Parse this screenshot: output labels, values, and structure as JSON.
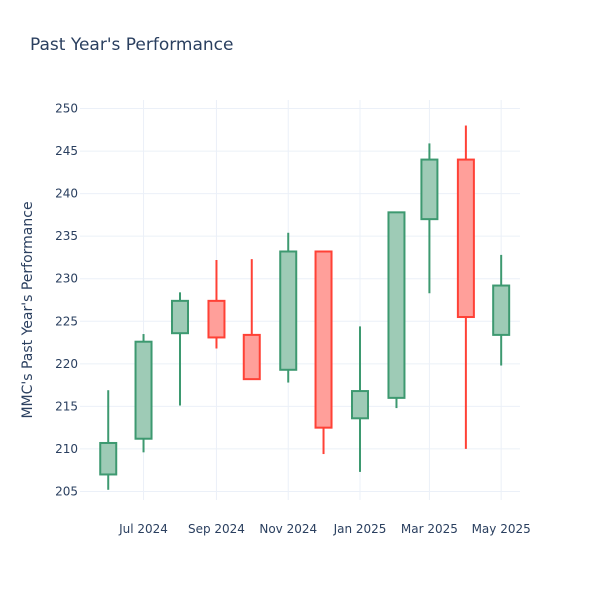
{
  "chart_data": {
    "type": "candlestick",
    "title": "Past Year's Performance",
    "xlabel": "",
    "ylabel": "MMC's Past Year's Performance",
    "ylim": [
      204,
      251
    ],
    "y_ticks": [
      205,
      210,
      215,
      220,
      225,
      230,
      235,
      240,
      245,
      250
    ],
    "x_ticks": [
      {
        "label": "Jul 2024",
        "date": "2024-07-01"
      },
      {
        "label": "Sep 2024",
        "date": "2024-09-01"
      },
      {
        "label": "Nov 2024",
        "date": "2024-11-01"
      },
      {
        "label": "Jan 2025",
        "date": "2025-01-01"
      },
      {
        "label": "Mar 2025",
        "date": "2025-03-01"
      },
      {
        "label": "May 2025",
        "date": "2025-05-01"
      }
    ],
    "x_range": [
      "2024-05-08",
      "2025-05-17"
    ],
    "increasing_color": "#3d9970",
    "increasing_fill": "#9ecbb6",
    "decreasing_color": "#ff4136",
    "decreasing_fill": "#ff9f9a",
    "grid": true,
    "series": [
      {
        "date": "2024-06-01",
        "open": 207.0,
        "high": 216.9,
        "low": 205.2,
        "close": 210.7
      },
      {
        "date": "2024-07-01",
        "open": 211.2,
        "high": 223.5,
        "low": 209.6,
        "close": 222.6
      },
      {
        "date": "2024-08-01",
        "open": 223.6,
        "high": 228.4,
        "low": 215.1,
        "close": 227.4
      },
      {
        "date": "2024-09-01",
        "open": 227.4,
        "high": 232.2,
        "low": 221.8,
        "close": 223.1
      },
      {
        "date": "2024-10-01",
        "open": 223.4,
        "high": 232.3,
        "low": 218.1,
        "close": 218.2
      },
      {
        "date": "2024-11-01",
        "open": 219.3,
        "high": 235.4,
        "low": 217.8,
        "close": 233.2
      },
      {
        "date": "2024-12-01",
        "open": 233.2,
        "high": 233.2,
        "low": 209.4,
        "close": 212.5
      },
      {
        "date": "2025-01-01",
        "open": 213.6,
        "high": 224.4,
        "low": 207.3,
        "close": 216.8
      },
      {
        "date": "2025-02-01",
        "open": 216.0,
        "high": 237.9,
        "low": 214.8,
        "close": 237.8
      },
      {
        "date": "2025-03-01",
        "open": 237.0,
        "high": 245.9,
        "low": 228.3,
        "close": 244.0
      },
      {
        "date": "2025-04-01",
        "open": 244.0,
        "high": 248.0,
        "low": 210.0,
        "close": 225.5
      },
      {
        "date": "2025-05-01",
        "open": 223.4,
        "high": 232.8,
        "low": 219.8,
        "close": 229.2
      }
    ]
  }
}
